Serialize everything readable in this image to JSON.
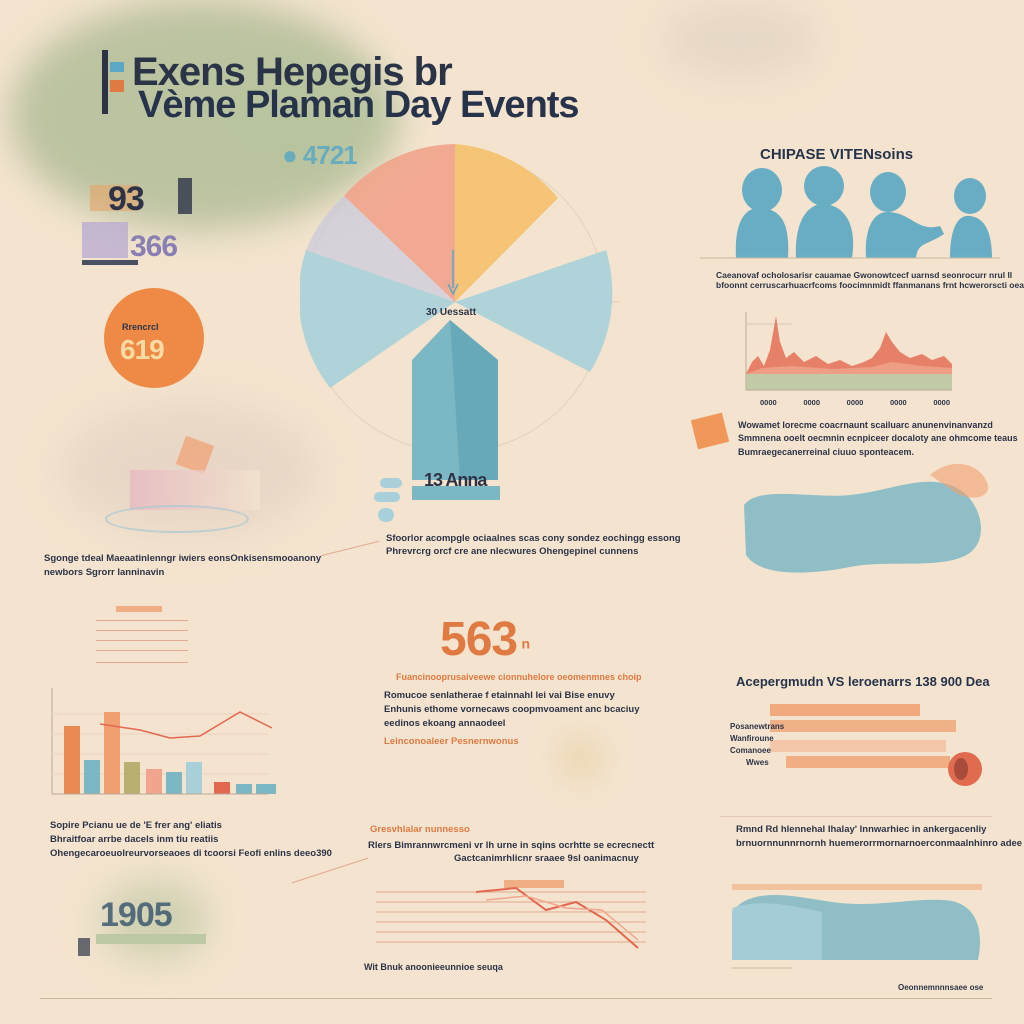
{
  "colors": {
    "background": "#f4e4cf",
    "navy": "#27334a",
    "orange": "#ee8a45",
    "peach": "#f0a58c",
    "yellow": "#f4c272",
    "teal": "#7cb7c4",
    "sage": "#b8c7a1",
    "lilac": "#b5aad0",
    "sky": "#5aa8c4"
  },
  "header": {
    "title_line1": "Exens Hepegis br",
    "title_line2": "Vème Plaman Day Events",
    "tag_number": "● 4721"
  },
  "left_stats": {
    "stat_a": "93",
    "stat_b": "366",
    "badge_label": "Rrencrcl",
    "badge_value": "619"
  },
  "center_wheel": {
    "center_label": "30 Uessatt",
    "tower_label": "13 Anna"
  },
  "center_caption": {
    "line1": "Sfoorlor acompgle ociaalnes scas cony sondez eochingg essong",
    "line2": "Phrevrcrg orcf cre ane nlecwures Ohengepinel cunnens"
  },
  "people_section": {
    "title": "CHIPASE VITENsoins",
    "caption_line1": "Caeanovaf ocholosarisr cauamae Gwonowtcecf uarnsd seonrocurr nrul ll",
    "caption_line2": "bfoonnt cerruscarhuacrfcoms foocimnmidt ffanmanans frnt hcwerorscti oeaha"
  },
  "area_chart": {
    "x_labels": [
      "0000",
      "0000",
      "0000",
      "0000",
      "0000"
    ]
  },
  "right_notes": {
    "line1": "Wowamet lorecme coacrnaunt scailuarc anunenvinanvanzd",
    "line2": "Smmnena ooelt oecmnin ecnpiceer docaloty ane ohmcome teaus",
    "line3": "Bumraegecanerreinal ciuuo sponteacem."
  },
  "left_caption": {
    "line1": "Sgonge tdeal Maeaatinlenngr iwiers eonsOnkisensmooanony",
    "line2": "newbors Sgrorr lanninavin"
  },
  "big_stat": {
    "value": "563",
    "superscript": "n",
    "subtitle": "Fuancinooprusaiveewe cionnuhelore oeomenmnes choip",
    "body_line1": "Romucoe senlatherae f etainnahl lei vai Bise enuvy",
    "body_line2": "Enhunis ethome vornecaws coopmvoament anc bcaciuy",
    "body_line3": "eedinos ekoang annaodeel",
    "link": "Leinconoaleer Pesnernwonus"
  },
  "chart_data": {
    "type": "bar",
    "categories": [
      "",
      "",
      "",
      "",
      "",
      "",
      "",
      "",
      "",
      ""
    ],
    "values": [
      68,
      34,
      82,
      32,
      25,
      22,
      32,
      12,
      10,
      10
    ],
    "ylim": [
      0,
      100
    ]
  },
  "bars_caption": {
    "line1": "Sopire Pcianu ue de 'E frer ang' eliatis",
    "line2": "Bhraitfoar arrbe dacels inm tiu reatiis",
    "line3": "Ohengecaroeuolreurvorseaoes di tcoorsi Feofi enlins deeo390"
  },
  "hbar_section": {
    "title": "Acepergmudn VS leroenarrs 138 900 Dea",
    "row_labels": [
      "Posanewtrans",
      "Wanfiroune",
      "Comanoee",
      "Wwes"
    ],
    "fractions": [
      0.55,
      0.82,
      0.7,
      0.65
    ]
  },
  "mid_bottom": {
    "title": "Gresvhlalar nunnesso",
    "line1": "Rlers Bimrannwrcmeni vr lh urne in sqins ocrhtte se ecrecnectt",
    "line2": "Gactcanimrhlicnr sraaee 9sl oanimacnuy",
    "footer": "Wit Bnuk anoonieeunnioe seuqa"
  },
  "right_bottom": {
    "line1": "Rmnd Rd hlennehal Ihalay' lnnwarhiec in ankergacenliy",
    "line2": "brnuornnunnrnornh huemerorrmornarnoerconmaalnhinro adee",
    "credit": "Oeonnemnnnsaee ose"
  },
  "bottom_left": {
    "value": "1905"
  }
}
